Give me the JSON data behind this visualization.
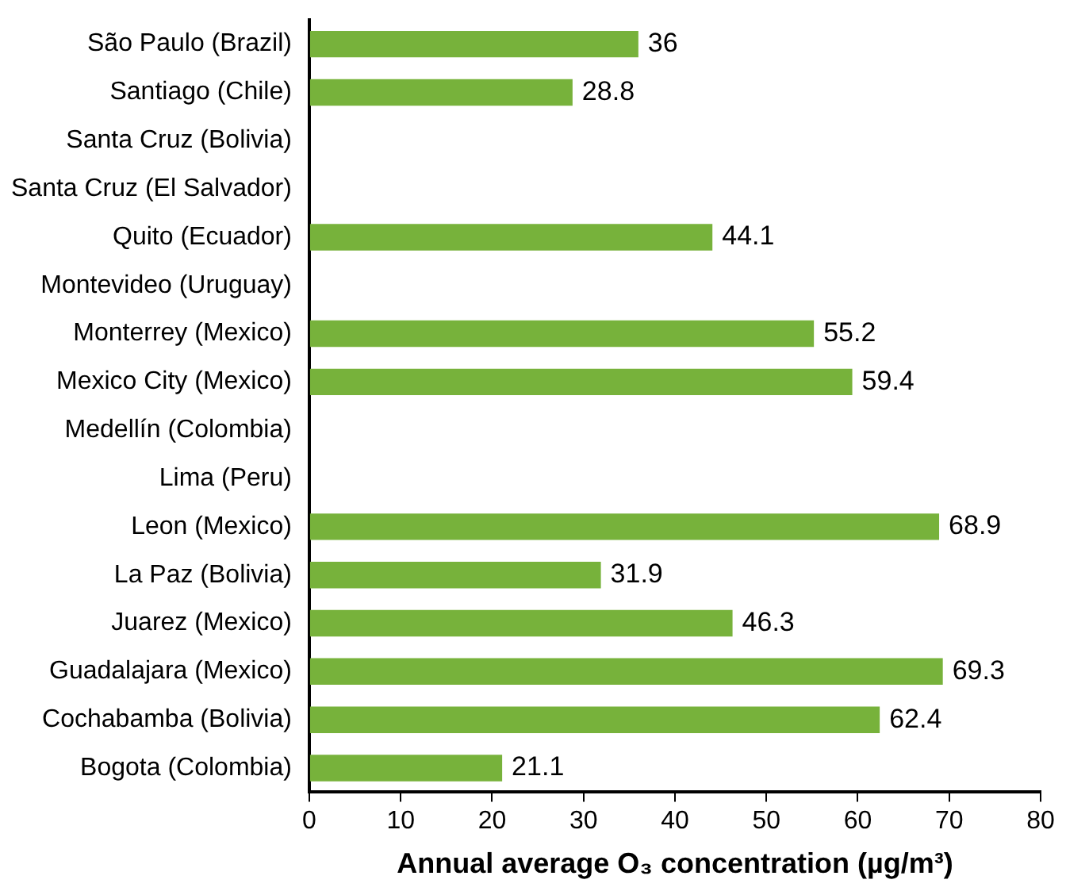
{
  "chart_data": {
    "type": "bar",
    "orientation": "horizontal",
    "xlabel": "Annual average O₃ concentration (µg/m³)",
    "categories": [
      "São Paulo (Brazil)",
      "Santiago (Chile)",
      "Santa Cruz (Bolivia)",
      "Santa Cruz (El Salvador)",
      "Quito (Ecuador)",
      "Montevideo (Uruguay)",
      "Monterrey (Mexico)",
      "Mexico City (Mexico)",
      "Medellín (Colombia)",
      "Lima (Peru)",
      "Leon (Mexico)",
      "La Paz (Bolivia)",
      "Juarez (Mexico)",
      "Guadalajara (Mexico)",
      "Cochabamba (Bolivia)",
      "Bogota (Colombia)"
    ],
    "values": [
      36,
      28.8,
      null,
      null,
      44.1,
      null,
      55.2,
      59.4,
      null,
      null,
      68.9,
      31.9,
      46.3,
      69.3,
      62.4,
      21.1
    ],
    "color": "#77b23b",
    "xlim": [
      0,
      80
    ],
    "xticks": [
      0,
      10,
      20,
      30,
      40,
      50,
      60,
      70,
      80
    ],
    "grid": false,
    "legend": false,
    "data_labels": true
  }
}
